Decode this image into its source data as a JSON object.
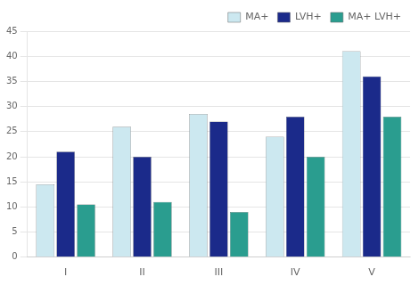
{
  "chart_data": {
    "type": "bar",
    "categories": [
      "I",
      "II",
      "III",
      "IV",
      "V"
    ],
    "series": [
      {
        "name": "MA+",
        "color": "#cce8f0",
        "values": [
          14.5,
          26,
          28.5,
          24,
          41
        ]
      },
      {
        "name": "LVH+",
        "color": "#1b2a8a",
        "values": [
          21,
          20,
          27,
          28,
          36
        ]
      },
      {
        "name": "MA+ LVH+",
        "color": "#2a9d8f",
        "values": [
          10.5,
          11,
          9,
          20,
          28
        ]
      }
    ],
    "ylim": [
      0,
      45
    ],
    "yticks": [
      0,
      5,
      10,
      15,
      20,
      25,
      30,
      35,
      40,
      45
    ],
    "grid": true,
    "legend": "upper right"
  }
}
